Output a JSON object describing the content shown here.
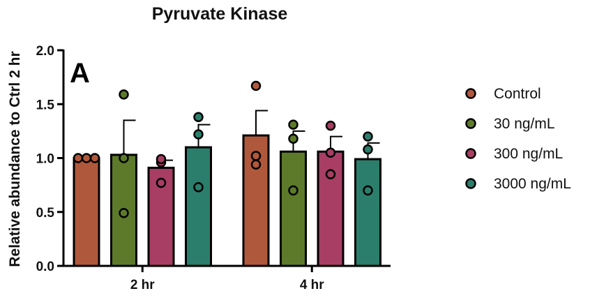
{
  "chart_data": {
    "type": "bar",
    "title": "Pyruvate Kinase",
    "panel_label": "A",
    "xlabel": "",
    "ylabel": "Relative abundance to Ctrl 2 hr",
    "ylim": [
      0,
      2.0
    ],
    "yticks": [
      0.0,
      0.5,
      1.0,
      1.5,
      2.0
    ],
    "ytick_labels": [
      "0.0",
      "0.5",
      "1.0",
      "1.5",
      "2.0"
    ],
    "categories": [
      "2 hr",
      "4 hr"
    ],
    "legend_position": "right",
    "series": [
      {
        "name": "Control",
        "color": "#b0583c",
        "values": [
          1.0,
          1.21
        ],
        "errors": [
          0.0,
          0.23
        ],
        "points": [
          [
            1.0,
            1.0,
            1.0
          ],
          [
            1.67,
            1.02,
            0.94
          ]
        ]
      },
      {
        "name": "30 ng/mL",
        "color": "#5d7a2a",
        "values": [
          1.03,
          1.06
        ],
        "errors": [
          0.32,
          0.19
        ],
        "points": [
          [
            1.59,
            1.0,
            0.49
          ],
          [
            1.31,
            1.18,
            0.7
          ]
        ]
      },
      {
        "name": "300 ng/mL",
        "color": "#a83e64",
        "values": [
          0.91,
          1.06
        ],
        "errors": [
          0.07,
          0.14
        ],
        "points": [
          [
            0.96,
            0.99,
            0.77
          ],
          [
            1.3,
            1.05,
            0.85
          ]
        ]
      },
      {
        "name": "3000 ng/mL",
        "color": "#2b7e6b",
        "values": [
          1.1,
          0.99
        ],
        "errors": [
          0.21,
          0.15
        ],
        "points": [
          [
            1.38,
            1.22,
            0.73
          ],
          [
            1.2,
            1.08,
            0.7
          ]
        ]
      }
    ]
  }
}
